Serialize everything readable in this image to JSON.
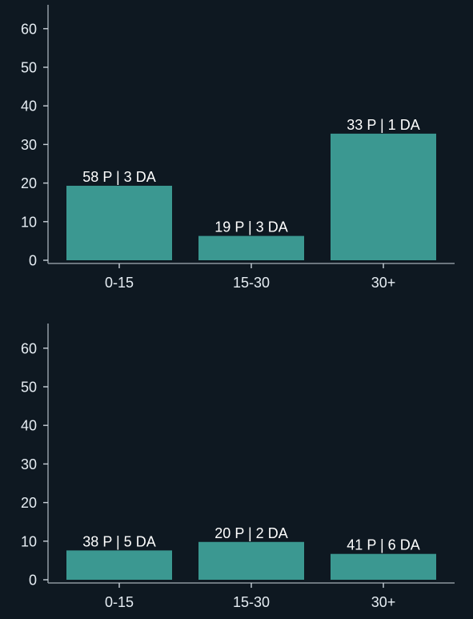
{
  "colors": {
    "background": "#0e1821",
    "bar": "#3b9891",
    "axis": "#8b959d",
    "text": "#e6edf3"
  },
  "chart_data": [
    {
      "type": "bar",
      "title": "",
      "xlabel": "",
      "ylabel": "",
      "ylim": [
        0,
        66
      ],
      "yticks": [
        0,
        10,
        20,
        30,
        40,
        50,
        60
      ],
      "categories": [
        "0-15",
        "15-30",
        "30+"
      ],
      "values": [
        19.3,
        6.3,
        32.8
      ],
      "data_labels": [
        "58 P | 3 DA",
        "19 P | 3 DA",
        "33 P | 1 DA"
      ],
      "grid": false,
      "legend": "none"
    },
    {
      "type": "bar",
      "title": "",
      "xlabel": "",
      "ylabel": "",
      "ylim": [
        0,
        66
      ],
      "yticks": [
        0,
        10,
        20,
        30,
        40,
        50,
        60
      ],
      "categories": [
        "0-15",
        "15-30",
        "30+"
      ],
      "values": [
        7.6,
        9.8,
        6.7
      ],
      "data_labels": [
        "38 P | 5 DA",
        "20 P | 2 DA",
        "41 P | 6 DA"
      ],
      "grid": false,
      "legend": "none"
    }
  ]
}
